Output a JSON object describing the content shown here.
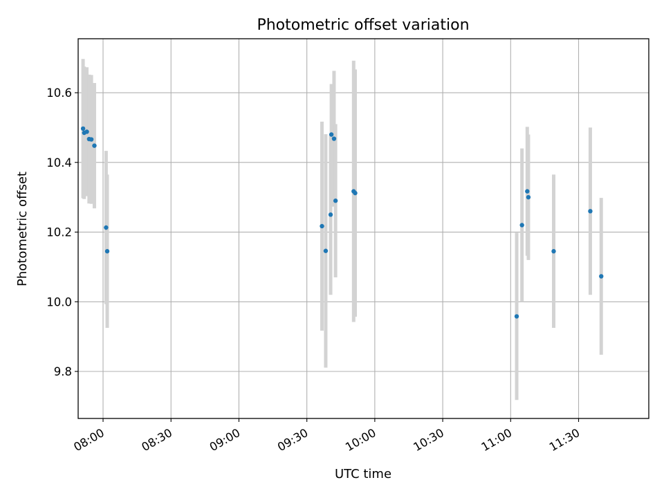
{
  "chart_data": {
    "type": "scatter",
    "title": "Photometric offset variation",
    "xlabel": "UTC time",
    "ylabel": "Photometric offset",
    "x_tick_labels": [
      "08:00",
      "08:30",
      "09:00",
      "09:30",
      "10:00",
      "10:30",
      "11:00",
      "11:30"
    ],
    "y_tick_labels": [
      "9.8",
      "10.0",
      "10.2",
      "10.4",
      "10.6"
    ],
    "x_ticks": [
      "08:00",
      "08:30",
      "09:00",
      "09:30",
      "10:00",
      "10:30",
      "11:00",
      "11:30"
    ],
    "y_ticks": [
      9.8,
      10.0,
      10.2,
      10.4,
      10.6
    ],
    "xlim": [
      "07:49",
      "12:01"
    ],
    "ylim": [
      9.665,
      10.755
    ],
    "grid": true,
    "marker_color": "#1f77b4",
    "errorbar_color": "#d3d3d3",
    "points": [
      {
        "x": "07:51:10",
        "y": 10.497,
        "err": 0.2
      },
      {
        "x": "07:51:40",
        "y": 10.485,
        "err": 0.19
      },
      {
        "x": "07:52:50",
        "y": 10.488,
        "err": 0.185
      },
      {
        "x": "07:53:50",
        "y": 10.467,
        "err": 0.185
      },
      {
        "x": "07:54:50",
        "y": 10.466,
        "err": 0.185
      },
      {
        "x": "07:56:10",
        "y": 10.448,
        "err": 0.18
      },
      {
        "x": "08:01:20",
        "y": 10.213,
        "err": 0.22
      },
      {
        "x": "08:01:50",
        "y": 10.145,
        "err": 0.22
      },
      {
        "x": "09:36:40",
        "y": 10.217,
        "err": 0.3
      },
      {
        "x": "09:38:20",
        "y": 10.146,
        "err": 0.335
      },
      {
        "x": "09:40:30",
        "y": 10.25,
        "err": 0.23
      },
      {
        "x": "09:40:50",
        "y": 10.48,
        "err": 0.145
      },
      {
        "x": "09:42:00",
        "y": 10.468,
        "err": 0.195
      },
      {
        "x": "09:42:40",
        "y": 10.29,
        "err": 0.22
      },
      {
        "x": "09:50:40",
        "y": 10.317,
        "err": 0.375
      },
      {
        "x": "09:51:20",
        "y": 10.312,
        "err": 0.355
      },
      {
        "x": "11:02:40",
        "y": 9.958,
        "err": 0.24
      },
      {
        "x": "11:05:00",
        "y": 10.22,
        "err": 0.22
      },
      {
        "x": "11:07:20",
        "y": 10.317,
        "err": 0.185
      },
      {
        "x": "11:07:50",
        "y": 10.3,
        "err": 0.18
      },
      {
        "x": "11:19:00",
        "y": 10.145,
        "err": 0.22
      },
      {
        "x": "11:35:10",
        "y": 10.26,
        "err": 0.24
      },
      {
        "x": "11:40:00",
        "y": 10.073,
        "err": 0.225
      }
    ]
  }
}
